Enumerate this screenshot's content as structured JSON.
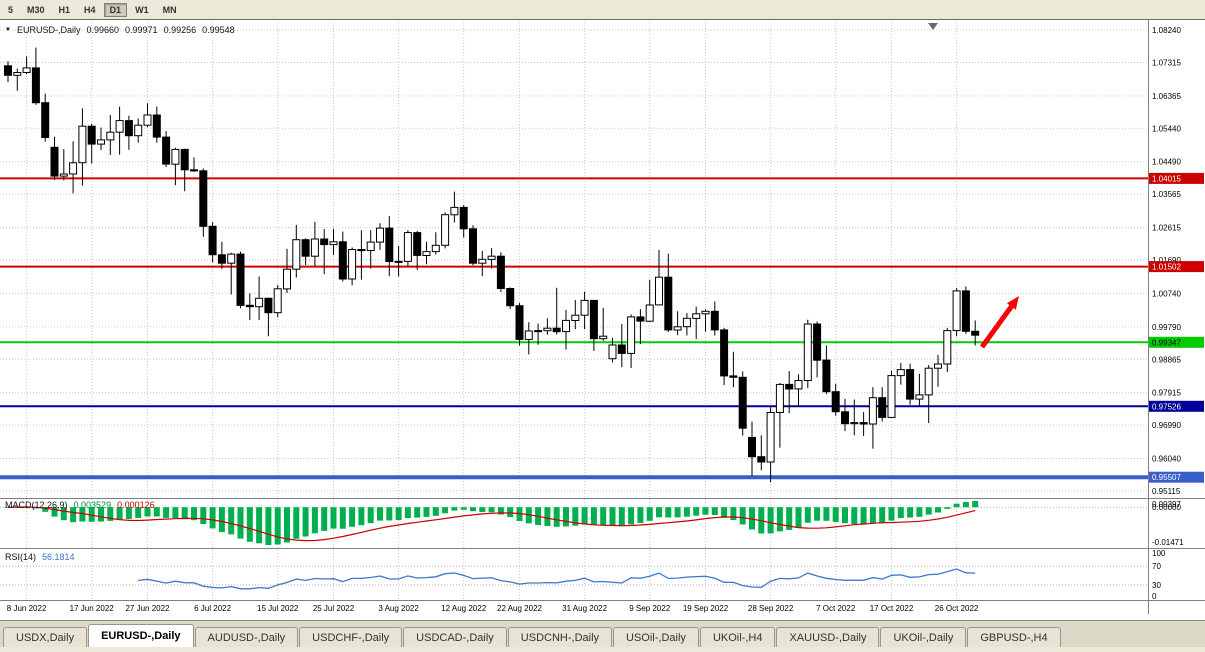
{
  "toolbar": {
    "periods": [
      {
        "label": "5",
        "active": false
      },
      {
        "label": "M30",
        "active": false
      },
      {
        "label": "H1",
        "active": false
      },
      {
        "label": "H4",
        "active": false
      },
      {
        "label": "D1",
        "active": true
      },
      {
        "label": "W1",
        "active": false
      },
      {
        "label": "MN",
        "active": false
      }
    ]
  },
  "chart": {
    "title": {
      "symbol_period": "EURUSD-,Daily",
      "open": "0.99660",
      "high": "0.99971",
      "low": "0.99256",
      "close": "0.99548"
    },
    "price_scale_labels": [
      "1.08240",
      "1.07315",
      "1.06365",
      "1.05440",
      "1.04490",
      "1.03565",
      "1.02615",
      "1.01690",
      "1.00740",
      "0.99790",
      "0.98865",
      "0.97915",
      "0.96990",
      "0.96040",
      "0.95115"
    ],
    "levels": [
      {
        "value": "1.04015",
        "color": "#cc0000",
        "thickness": 2,
        "text_color": "#ffffff"
      },
      {
        "value": "1.01502",
        "color": "#cc0000",
        "thickness": 2,
        "text_color": "#ffffff"
      },
      {
        "value": "0.99347",
        "color": "#00cc00",
        "thickness": 2,
        "text_color": "#000000"
      },
      {
        "value": "0.97526",
        "color": "#000099",
        "thickness": 2,
        "text_color": "#ffffff"
      },
      {
        "value": "0.95507",
        "color": "#3a5fcd",
        "thickness": 4,
        "text_color": "#ffffff"
      }
    ],
    "macd": {
      "label": "MACD(12,26,9)",
      "value1": "0.003529",
      "value2": "0.000126",
      "axis_labels": [
        "0.00397",
        "0.00000",
        "-0.01471"
      ],
      "hist_color": "#00b050",
      "signal_color": "#cc0000"
    },
    "rsi": {
      "label": "RSI(14)",
      "value": "56.1814",
      "axis_labels": [
        "100",
        "70",
        "30",
        "0"
      ],
      "levels": [
        70,
        30
      ],
      "line_color": "#3c78c8"
    },
    "dates": [
      {
        "i": 2,
        "label": "8 Jun 2022"
      },
      {
        "i": 9,
        "label": "17 Jun 2022"
      },
      {
        "i": 15,
        "label": "27 Jun 2022"
      },
      {
        "i": 22,
        "label": "6 Jul 2022"
      },
      {
        "i": 29,
        "label": "15 Jul 2022"
      },
      {
        "i": 35,
        "label": "25 Jul 2022"
      },
      {
        "i": 42,
        "label": "3 Aug 2022"
      },
      {
        "i": 49,
        "label": "12 Aug 2022"
      },
      {
        "i": 55,
        "label": "22 Aug 2022"
      },
      {
        "i": 62,
        "label": "31 Aug 2022"
      },
      {
        "i": 69,
        "label": "9 Sep 2022"
      },
      {
        "i": 75,
        "label": "19 Sep 2022"
      },
      {
        "i": 82,
        "label": "28 Sep 2022"
      },
      {
        "i": 89,
        "label": "7 Oct 2022"
      },
      {
        "i": 95,
        "label": "17 Oct 2022"
      },
      {
        "i": 102,
        "label": "26 Oct 2022"
      }
    ],
    "colors": {
      "bull": "#ffffff",
      "bear": "#000000",
      "outline": "#000000",
      "grid": "#c9c9c9",
      "arrow": "#ff0000"
    }
  },
  "chart_data": {
    "type": "candlestick",
    "symbol": "EURUSD-",
    "period": "Daily",
    "candles": [
      [
        1.0722,
        1.0735,
        1.0675,
        1.0695
      ],
      [
        1.0695,
        1.0714,
        1.0651,
        1.0703
      ],
      [
        1.0703,
        1.0749,
        1.0698,
        1.0716
      ],
      [
        1.0716,
        1.0774,
        1.0611,
        1.0617
      ],
      [
        1.0617,
        1.0643,
        1.0506,
        1.0518
      ],
      [
        1.049,
        1.052,
        1.0397,
        1.0408
      ],
      [
        1.0408,
        1.0485,
        1.0396,
        1.0414
      ],
      [
        1.0414,
        1.0507,
        1.0359,
        1.0446
      ],
      [
        1.0446,
        1.0601,
        1.0381,
        1.055
      ],
      [
        1.055,
        1.0557,
        1.0444,
        1.0499
      ],
      [
        1.0499,
        1.0546,
        1.0482,
        1.0511
      ],
      [
        1.0511,
        1.0582,
        1.0468,
        1.0533
      ],
      [
        1.0533,
        1.0606,
        1.0469,
        1.0566
      ],
      [
        1.0566,
        1.058,
        1.0483,
        1.0523
      ],
      [
        1.0523,
        1.0572,
        1.0503,
        1.0553
      ],
      [
        1.0553,
        1.0615,
        1.0547,
        1.0582
      ],
      [
        1.0582,
        1.0606,
        1.0503,
        1.0519
      ],
      [
        1.0519,
        1.0536,
        1.0434,
        1.0442
      ],
      [
        1.0442,
        1.0489,
        1.0382,
        1.0484
      ],
      [
        1.0484,
        1.0486,
        1.0365,
        1.0426
      ],
      [
        1.0426,
        1.0461,
        1.042,
        1.0423
      ],
      [
        1.0423,
        1.043,
        1.0235,
        1.0265
      ],
      [
        1.0265,
        1.0277,
        1.0162,
        1.0184
      ],
      [
        1.0184,
        1.0221,
        1.0144,
        1.016
      ],
      [
        1.016,
        1.019,
        1.0071,
        1.0186
      ],
      [
        1.0186,
        1.0193,
        1.0032,
        1.004
      ],
      [
        1.004,
        1.0074,
        0.9998,
        1.0036
      ],
      [
        1.0036,
        1.0122,
        0.9998,
        1.006
      ],
      [
        1.006,
        1.0062,
        0.9952,
        1.0019
      ],
      [
        1.0019,
        1.0098,
        1.0006,
        1.0087
      ],
      [
        1.0087,
        1.0201,
        1.0075,
        1.0143
      ],
      [
        1.0143,
        1.0269,
        1.0119,
        1.0227
      ],
      [
        1.0227,
        1.0231,
        1.0155,
        1.018
      ],
      [
        1.018,
        1.0278,
        1.0152,
        1.0229
      ],
      [
        1.0229,
        1.0257,
        1.0129,
        1.0213
      ],
      [
        1.0213,
        1.0258,
        1.0183,
        1.0221
      ],
      [
        1.0221,
        1.025,
        1.0108,
        1.0115
      ],
      [
        1.0115,
        1.0205,
        1.0097,
        1.0199
      ],
      [
        1.0199,
        1.0254,
        1.0113,
        1.0196
      ],
      [
        1.0196,
        1.0254,
        1.0145,
        1.022
      ],
      [
        1.022,
        1.0274,
        1.0198,
        1.026
      ],
      [
        1.026,
        1.0294,
        1.0123,
        1.0165
      ],
      [
        1.0165,
        1.0209,
        1.0122,
        1.0165
      ],
      [
        1.0165,
        1.0254,
        1.0151,
        1.0247
      ],
      [
        1.0247,
        1.0252,
        1.0141,
        1.0182
      ],
      [
        1.0182,
        1.0221,
        1.0157,
        1.0193
      ],
      [
        1.0193,
        1.0248,
        1.0185,
        1.0211
      ],
      [
        1.0211,
        1.0305,
        1.0202,
        1.0298
      ],
      [
        1.0298,
        1.0364,
        1.0276,
        1.0319
      ],
      [
        1.0319,
        1.0326,
        1.0233,
        1.0258
      ],
      [
        1.0258,
        1.0268,
        1.0154,
        1.016
      ],
      [
        1.016,
        1.0195,
        1.0123,
        1.0171
      ],
      [
        1.0171,
        1.0203,
        1.0145,
        1.018
      ],
      [
        1.018,
        1.0191,
        1.0078,
        1.0088
      ],
      [
        1.0088,
        1.0091,
        1.003,
        1.0039
      ],
      [
        1.0039,
        1.0047,
        0.9926,
        0.9943
      ],
      [
        0.9943,
        0.9992,
        0.99,
        0.9967
      ],
      [
        0.9967,
        0.9988,
        0.9928,
        0.9968
      ],
      [
        0.9968,
        1.0003,
        0.9956,
        0.9975
      ],
      [
        0.9975,
        1.009,
        0.9957,
        0.9965
      ],
      [
        0.9965,
        1.0027,
        0.9914,
        0.9997
      ],
      [
        0.9997,
        1.0055,
        0.9972,
        1.0012
      ],
      [
        1.0012,
        1.0079,
        0.9972,
        1.0054
      ],
      [
        1.0054,
        1.0055,
        0.991,
        0.9945
      ],
      [
        0.9945,
        1.0033,
        0.9939,
        0.9952
      ],
      [
        0.9888,
        0.9948,
        0.9878,
        0.9927
      ],
      [
        0.9927,
        0.9987,
        0.9864,
        0.9903
      ],
      [
        0.9903,
        1.0014,
        0.9862,
        1.0007
      ],
      [
        1.0007,
        1.0029,
        0.993,
        0.9995
      ],
      [
        0.9995,
        1.0113,
        0.9993,
        1.0041
      ],
      [
        1.0041,
        1.0198,
        1.004,
        1.012
      ],
      [
        1.012,
        1.0187,
        0.9964,
        0.997
      ],
      [
        0.997,
        1.0023,
        0.9955,
        0.9979
      ],
      [
        0.9979,
        1.0018,
        0.9954,
        1.0003
      ],
      [
        1.0003,
        1.0036,
        0.9944,
        1.0016
      ],
      [
        1.0016,
        1.0029,
        0.9965,
        1.0023
      ],
      [
        1.0023,
        1.0051,
        0.9954,
        0.997
      ],
      [
        0.997,
        0.9976,
        0.9813,
        0.9839
      ],
      [
        0.9839,
        0.9908,
        0.9807,
        0.9835
      ],
      [
        0.9835,
        0.9852,
        0.9669,
        0.969
      ],
      [
        0.9664,
        0.9709,
        0.9554,
        0.9609
      ],
      [
        0.9609,
        0.967,
        0.957,
        0.9594
      ],
      [
        0.9594,
        0.975,
        0.9536,
        0.9735
      ],
      [
        0.9735,
        0.9819,
        0.9635,
        0.9815
      ],
      [
        0.9815,
        0.9853,
        0.9733,
        0.9802
      ],
      [
        0.9802,
        0.9844,
        0.9751,
        0.9826
      ],
      [
        0.9826,
        0.9999,
        0.9804,
        0.9987
      ],
      [
        0.9987,
        0.9994,
        0.9835,
        0.9884
      ],
      [
        0.9884,
        0.9926,
        0.9787,
        0.9794
      ],
      [
        0.9794,
        0.9817,
        0.9726,
        0.9737
      ],
      [
        0.9737,
        0.9774,
        0.9682,
        0.9703
      ],
      [
        0.9703,
        0.9772,
        0.967,
        0.9706
      ],
      [
        0.9706,
        0.9736,
        0.9668,
        0.9702
      ],
      [
        0.9702,
        0.9807,
        0.9632,
        0.9777
      ],
      [
        0.9777,
        0.9807,
        0.9709,
        0.9721
      ],
      [
        0.9721,
        0.9854,
        0.9721,
        0.984
      ],
      [
        0.984,
        0.9876,
        0.9814,
        0.9857
      ],
      [
        0.9857,
        0.9874,
        0.9757,
        0.9773
      ],
      [
        0.9773,
        0.9845,
        0.9755,
        0.9785
      ],
      [
        0.9785,
        0.987,
        0.9705,
        0.9861
      ],
      [
        0.9861,
        0.9899,
        0.9808,
        0.9873
      ],
      [
        0.9873,
        0.9976,
        0.985,
        0.9968
      ],
      [
        0.9968,
        1.0089,
        0.9952,
        1.0081
      ],
      [
        1.0081,
        1.0094,
        0.9959,
        0.9966
      ],
      [
        0.9966,
        0.99971,
        0.99256,
        0.99548
      ]
    ]
  },
  "tabs": [
    {
      "label": "USDX,Daily",
      "active": false
    },
    {
      "label": "EURUSD-,Daily",
      "active": true
    },
    {
      "label": "AUDUSD-,Daily",
      "active": false
    },
    {
      "label": "USDCHF-,Daily",
      "active": false
    },
    {
      "label": "USDCAD-,Daily",
      "active": false
    },
    {
      "label": "USDCNH-,Daily",
      "active": false
    },
    {
      "label": "USOil-,Daily",
      "active": false
    },
    {
      "label": "UKOil-,H4",
      "active": false
    },
    {
      "label": "XAUUSD-,Daily",
      "active": false
    },
    {
      "label": "UKOil-,Daily",
      "active": false
    },
    {
      "label": "GBPUSD-,H4",
      "active": false
    }
  ]
}
